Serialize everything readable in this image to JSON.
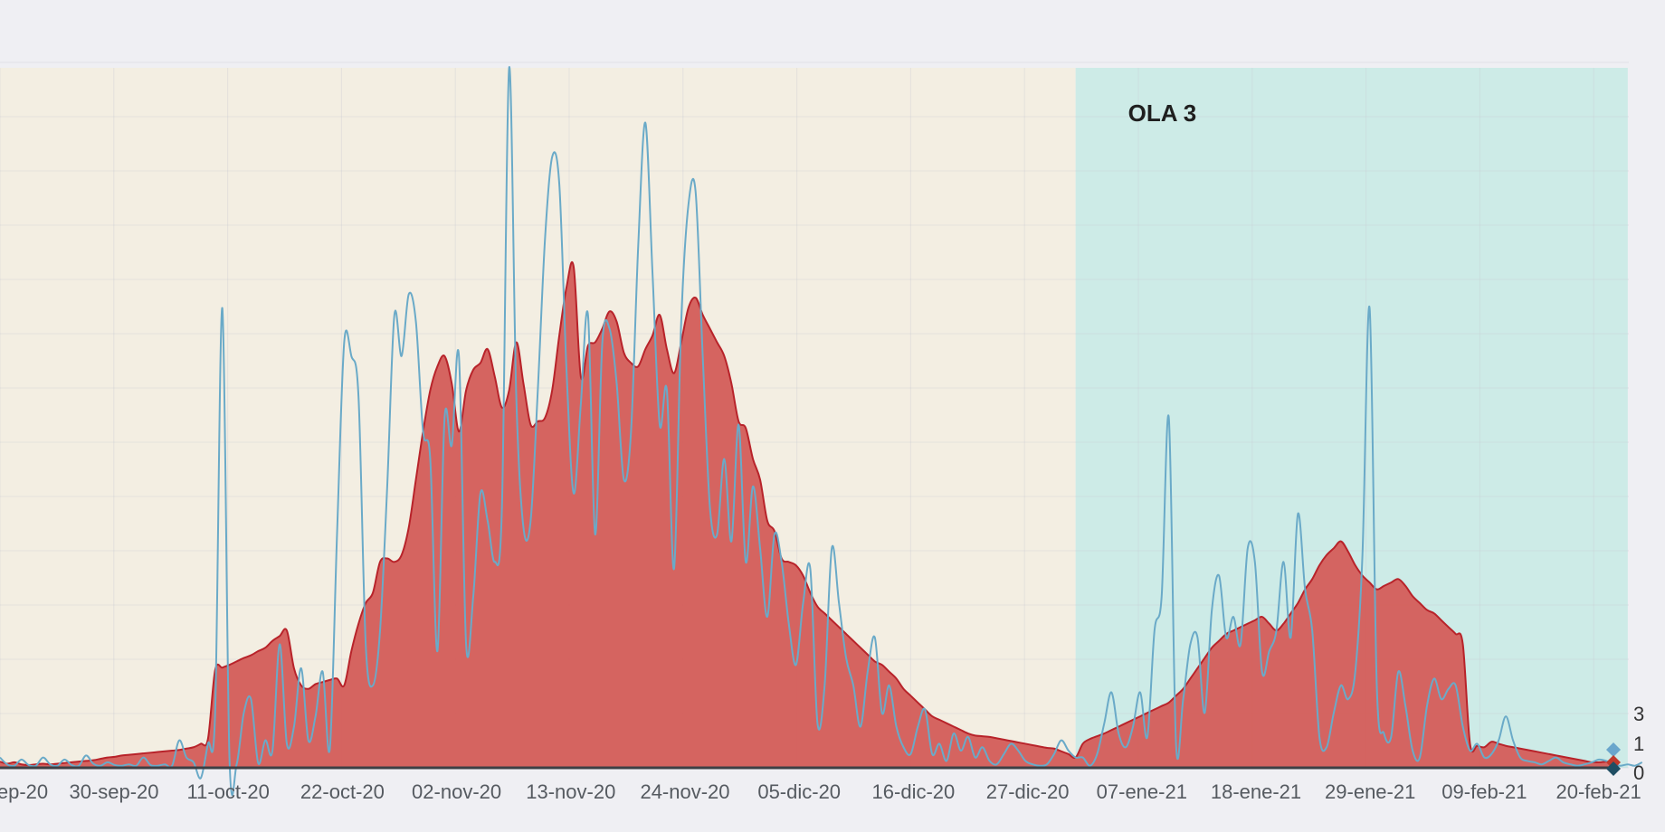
{
  "chart_data": {
    "type": "area",
    "title": "",
    "xlabel": "",
    "ylabel": "",
    "x_tick_labels": [
      "ep-20",
      "30-sep-20",
      "11-oct-20",
      "22-oct-20",
      "02-nov-20",
      "13-nov-20",
      "24-nov-20",
      "05-dic-20",
      "16-dic-20",
      "27-dic-20",
      "07-ene-21",
      "18-ene-21",
      "29-ene-21",
      "09-feb-21",
      "20-feb-21"
    ],
    "y_tick_labels_visible": [
      "0",
      "1",
      "3"
    ],
    "grid": true,
    "bands": [
      {
        "label": "",
        "color": "#f3eee2",
        "start_index": 0,
        "end_index": 150
      },
      {
        "label": "OLA 3",
        "color": "#cdebe7",
        "start_index": 150,
        "end_index": 227
      }
    ],
    "series": [
      {
        "kind": "area",
        "color": "#d45f5c",
        "stroke": "#b8232a",
        "values": [
          0.9,
          0.6,
          0.8,
          0.5,
          0.4,
          0.5,
          0.6,
          0.5,
          0.6,
          0.7,
          0.8,
          0.9,
          1.0,
          1.1,
          1.3,
          1.5,
          1.6,
          1.8,
          1.9,
          2.0,
          2.1,
          2.2,
          2.3,
          2.4,
          2.5,
          2.6,
          2.8,
          3.0,
          3.5,
          4.2,
          14.2,
          14.6,
          15.0,
          15.5,
          16.0,
          16.4,
          17.0,
          17.5,
          18.5,
          19.2,
          20.0,
          14.5,
          12.0,
          11.5,
          12.2,
          12.5,
          12.8,
          13.0,
          12.0,
          17.0,
          21.0,
          24.0,
          25.5,
          30.0,
          30.5,
          30.0,
          31.0,
          35.0,
          42.0,
          49.0,
          55.0,
          58.5,
          60.0,
          56.0,
          49.0,
          55.0,
          58.0,
          59.0,
          61.0,
          57.0,
          52.5,
          55.0,
          62.0,
          56.0,
          50.0,
          50.5,
          51.0,
          55.0,
          63.0,
          70.0,
          73.0,
          57.0,
          61.5,
          62.0,
          64.0,
          66.5,
          65.0,
          60.5,
          59.0,
          58.5,
          61.0,
          63.0,
          66.0,
          61.0,
          57.5,
          62.0,
          67.0,
          68.5,
          66.0,
          64.0,
          62.0,
          60.0,
          56.0,
          50.5,
          49.5,
          45.0,
          42.0,
          36.0,
          34.5,
          30.5,
          30.0,
          29.5,
          28.0,
          25.5,
          23.5,
          22.5,
          21.5,
          20.5,
          19.5,
          18.5,
          17.5,
          16.5,
          15.5,
          15.0,
          14.0,
          13.0,
          11.5,
          10.5,
          9.5,
          8.5,
          7.5,
          7.0,
          6.5,
          6.0,
          5.5,
          5.0,
          4.7,
          4.6,
          4.5,
          4.3,
          4.1,
          3.9,
          3.7,
          3.5,
          3.3,
          3.1,
          2.9,
          2.8,
          2.4,
          2.0,
          1.5,
          3.5,
          4.2,
          4.6,
          5.0,
          5.5,
          6.0,
          6.5,
          7.0,
          7.5,
          8.0,
          8.5,
          9.0,
          9.5,
          10.5,
          11.5,
          13.0,
          14.5,
          16.0,
          17.5,
          18.5,
          19.5,
          20.0,
          20.5,
          21.0,
          21.5,
          22.0,
          21.0,
          20.0,
          21.0,
          22.5,
          24.0,
          26.0,
          27.5,
          29.5,
          31.0,
          32.0,
          33.0,
          31.5,
          29.5,
          28.0,
          27.0,
          26.0,
          26.5,
          27.0,
          27.5,
          26.5,
          25.0,
          24.0,
          23.0,
          22.5,
          21.5,
          20.5,
          19.5,
          18.0,
          3.5,
          3.2,
          3.0,
          3.8,
          3.5,
          3.2,
          3.0,
          2.8,
          2.6,
          2.4,
          2.2,
          2.0,
          1.8,
          1.6,
          1.4,
          1.2,
          1.0,
          0.8,
          0.8,
          0.9,
          1.0
        ]
      },
      {
        "kind": "line",
        "color": "#6aaac8",
        "values": [
          1.5,
          0.5,
          0.3,
          1.2,
          0.4,
          0.3,
          1.5,
          0.5,
          0.3,
          1.2,
          0.4,
          0.3,
          1.8,
          0.6,
          0.3,
          0.8,
          0.4,
          0.3,
          0.5,
          0.3,
          1.5,
          0.4,
          0.3,
          0.5,
          0.3,
          4.0,
          1.5,
          0.8,
          -1.5,
          3.5,
          8.0,
          67.0,
          1.5,
          0.5,
          8.0,
          10.0,
          0.7,
          4.0,
          2.5,
          18.0,
          3.5,
          6.0,
          14.5,
          4.0,
          7.5,
          14.0,
          2.8,
          34.0,
          62.0,
          60.0,
          54.0,
          18.0,
          12.0,
          20.0,
          41.0,
          66.0,
          60.0,
          69.0,
          65.0,
          49.0,
          45.0,
          17.0,
          51.0,
          47.0,
          60.0,
          18.0,
          25.0,
          40.0,
          36.0,
          30.0,
          38.0,
          102.0,
          54.0,
          35.0,
          36.0,
          55.0,
          77.0,
          89.0,
          85.0,
          58.0,
          40.0,
          53.0,
          66.0,
          34.0,
          62.0,
          64.0,
          56.0,
          42.0,
          49.0,
          76.0,
          94.0,
          72.0,
          50.0,
          55.0,
          29.0,
          65.0,
          82.0,
          84.0,
          60.0,
          38.0,
          34.0,
          45.0,
          33.0,
          50.0,
          30.0,
          41.0,
          32.0,
          22.0,
          34.0,
          30.0,
          21.0,
          15.0,
          24.0,
          29.0,
          6.5,
          12.0,
          32.0,
          24.0,
          16.0,
          12.0,
          6.0,
          14.0,
          19.0,
          8.0,
          12.0,
          6.0,
          3.0,
          2.0,
          6.0,
          8.5,
          2.0,
          3.5,
          1.0,
          5.0,
          2.5,
          4.5,
          1.5,
          3.0,
          1.0,
          0.5,
          2.0,
          3.5,
          2.5,
          1.0,
          0.5,
          0.3,
          0.5,
          2.0,
          4.0,
          2.5,
          1.5,
          1.5,
          0.3,
          2.0,
          6.5,
          11.0,
          5.0,
          3.0,
          6.0,
          11.0,
          4.5,
          20.0,
          25.0,
          51.0,
          3.5,
          10.0,
          18.0,
          19.0,
          8.0,
          23.0,
          28.0,
          19.0,
          22.0,
          18.0,
          32.0,
          30.0,
          14.0,
          17.0,
          20.0,
          30.0,
          19.0,
          37.0,
          26.0,
          20.0,
          4.5,
          3.0,
          8.0,
          12.0,
          10.0,
          14.0,
          31.0,
          67.0,
          12.0,
          5.0,
          4.5,
          14.0,
          9.0,
          2.5,
          1.5,
          9.0,
          13.0,
          10.0,
          11.5,
          12.0,
          6.0,
          2.5,
          3.5,
          1.5,
          2.0,
          4.0,
          7.5,
          4.0,
          1.5,
          1.0,
          0.8,
          0.5,
          1.0,
          1.5,
          0.8,
          0.5,
          0.3,
          0.5,
          0.8,
          1.2,
          1.0,
          0.5,
          0.3,
          0.5,
          0.3,
          0.8
        ]
      }
    ],
    "end_markers": [
      {
        "color": "#6aa6cc",
        "value": 2.5
      },
      {
        "color": "#c0392b",
        "value": 0.8
      },
      {
        "color": "#1f4e63",
        "value": 0.2
      }
    ]
  }
}
